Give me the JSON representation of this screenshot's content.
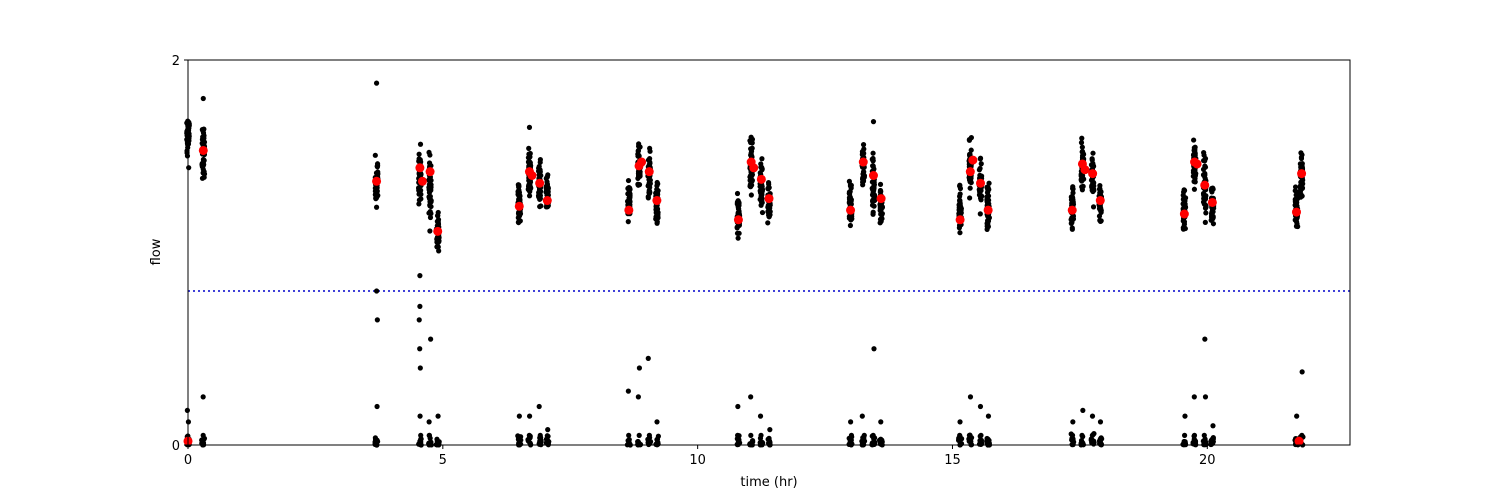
{
  "chart_data": {
    "type": "scatter",
    "title": "",
    "xlabel": "time (hr)",
    "ylabel": "flow",
    "xlim": [
      0,
      22.8
    ],
    "ylim": [
      0,
      2
    ],
    "x_ticks": [
      0,
      5,
      10,
      15,
      20
    ],
    "x_tick_labels": [
      "0",
      "5",
      "10",
      "15",
      "20"
    ],
    "y_ticks": [
      0,
      2
    ],
    "y_tick_labels": [
      "0",
      "2"
    ],
    "grid": false,
    "legend": "none",
    "colors": {
      "raw": "#000000",
      "mean": "#ff0000",
      "threshold": "#0000cc"
    },
    "threshold_line": {
      "y": 0.8,
      "style": "dotted"
    },
    "clusters": [
      {
        "x": 0.0,
        "center": 1.6,
        "spread": 0.11,
        "low": [
          0.02,
          0.12,
          0.18
        ]
      },
      {
        "x": 0.3,
        "center": 1.52,
        "spread": 0.11,
        "low": [
          0.03,
          0.05,
          0.25
        ]
      },
      {
        "x": 3.7,
        "center": 1.35,
        "spread": 0.12,
        "low": [
          0.0,
          0.2,
          0.65,
          0.8
        ]
      },
      {
        "x": 4.55,
        "center": 1.4,
        "spread": 0.12,
        "low": [
          0.05,
          0.15,
          0.4,
          0.5,
          0.65
        ]
      },
      {
        "x": 4.75,
        "center": 1.35,
        "spread": 0.15,
        "low": [
          0.05,
          0.12,
          0.55
        ]
      },
      {
        "x": 4.9,
        "center": 1.1,
        "spread": 0.08,
        "low": [
          0.03,
          0.15
        ]
      },
      {
        "x": 6.5,
        "center": 1.25,
        "spread": 0.11,
        "low": [
          0.03,
          0.15
        ]
      },
      {
        "x": 6.7,
        "center": 1.4,
        "spread": 0.12,
        "low": [
          0.05,
          0.15
        ]
      },
      {
        "x": 6.9,
        "center": 1.35,
        "spread": 0.1,
        "low": [
          0.05,
          0.2
        ]
      },
      {
        "x": 7.05,
        "center": 1.3,
        "spread": 0.08,
        "low": [
          0.03,
          0.08
        ]
      },
      {
        "x": 8.65,
        "center": 1.25,
        "spread": 0.1,
        "low": [
          0.05,
          0.28
        ]
      },
      {
        "x": 8.85,
        "center": 1.45,
        "spread": 0.11,
        "low": [
          0.05,
          0.25,
          0.4
        ]
      },
      {
        "x": 9.05,
        "center": 1.4,
        "spread": 0.12,
        "low": [
          0.05,
          0.45
        ]
      },
      {
        "x": 9.2,
        "center": 1.25,
        "spread": 0.09,
        "low": [
          0.03,
          0.12
        ]
      },
      {
        "x": 10.8,
        "center": 1.2,
        "spread": 0.1,
        "low": [
          0.05,
          0.2
        ]
      },
      {
        "x": 11.05,
        "center": 1.45,
        "spread": 0.11,
        "low": [
          0.05,
          0.25
        ]
      },
      {
        "x": 11.25,
        "center": 1.35,
        "spread": 0.11,
        "low": [
          0.05,
          0.15
        ]
      },
      {
        "x": 11.4,
        "center": 1.25,
        "spread": 0.09,
        "low": [
          0.03,
          0.08
        ]
      },
      {
        "x": 13.0,
        "center": 1.25,
        "spread": 0.1,
        "low": [
          0.05,
          0.12
        ]
      },
      {
        "x": 13.25,
        "center": 1.45,
        "spread": 0.11,
        "low": [
          0.05,
          0.15
        ]
      },
      {
        "x": 13.45,
        "center": 1.35,
        "spread": 0.13,
        "low": [
          0.05,
          0.5
        ]
      },
      {
        "x": 13.6,
        "center": 1.25,
        "spread": 0.09,
        "low": [
          0.03,
          0.12
        ]
      },
      {
        "x": 15.15,
        "center": 1.2,
        "spread": 0.1,
        "low": [
          0.05,
          0.12
        ]
      },
      {
        "x": 15.35,
        "center": 1.45,
        "spread": 0.11,
        "low": [
          0.05,
          0.25
        ]
      },
      {
        "x": 15.55,
        "center": 1.35,
        "spread": 0.12,
        "low": [
          0.05,
          0.2
        ]
      },
      {
        "x": 15.7,
        "center": 1.25,
        "spread": 0.1,
        "low": [
          0.03,
          0.15
        ]
      },
      {
        "x": 17.35,
        "center": 1.25,
        "spread": 0.1,
        "low": [
          0.05,
          0.12
        ]
      },
      {
        "x": 17.55,
        "center": 1.45,
        "spread": 0.11,
        "low": [
          0.05,
          0.18
        ]
      },
      {
        "x": 17.75,
        "center": 1.38,
        "spread": 0.12,
        "low": [
          0.05,
          0.15
        ]
      },
      {
        "x": 17.9,
        "center": 1.25,
        "spread": 0.09,
        "low": [
          0.03,
          0.12
        ]
      },
      {
        "x": 19.55,
        "center": 1.22,
        "spread": 0.1,
        "low": [
          0.05,
          0.15
        ]
      },
      {
        "x": 19.75,
        "center": 1.45,
        "spread": 0.11,
        "low": [
          0.05,
          0.25
        ]
      },
      {
        "x": 19.95,
        "center": 1.35,
        "spread": 0.13,
        "low": [
          0.05,
          0.25,
          0.55
        ]
      },
      {
        "x": 20.1,
        "center": 1.25,
        "spread": 0.09,
        "low": [
          0.03,
          0.1
        ]
      },
      {
        "x": 21.75,
        "center": 1.22,
        "spread": 0.1,
        "low": [
          0.03,
          0.15
        ]
      },
      {
        "x": 21.85,
        "center": 1.4,
        "spread": 0.1,
        "low": [
          0.05,
          0.38
        ]
      }
    ],
    "outliers": [
      {
        "x": 0.3,
        "y": 1.8
      },
      {
        "x": 3.7,
        "y": 1.88
      },
      {
        "x": 3.7,
        "y": 0.0
      },
      {
        "x": 4.55,
        "y": 0.88
      },
      {
        "x": 4.55,
        "y": 0.72
      },
      {
        "x": 6.7,
        "y": 1.65
      },
      {
        "x": 13.45,
        "y": 1.68
      }
    ],
    "mean_points": [
      {
        "x": 0.3,
        "y": 1.53
      },
      {
        "x": 3.7,
        "y": 1.37
      },
      {
        "x": 4.55,
        "y": 1.44
      },
      {
        "x": 4.6,
        "y": 1.37
      },
      {
        "x": 4.75,
        "y": 1.42
      },
      {
        "x": 4.9,
        "y": 1.11
      },
      {
        "x": 6.5,
        "y": 1.24
      },
      {
        "x": 6.7,
        "y": 1.42
      },
      {
        "x": 6.75,
        "y": 1.4
      },
      {
        "x": 6.9,
        "y": 1.36
      },
      {
        "x": 7.05,
        "y": 1.27
      },
      {
        "x": 8.65,
        "y": 1.22
      },
      {
        "x": 8.85,
        "y": 1.45
      },
      {
        "x": 8.9,
        "y": 1.47
      },
      {
        "x": 9.05,
        "y": 1.42
      },
      {
        "x": 9.2,
        "y": 1.27
      },
      {
        "x": 10.8,
        "y": 1.17
      },
      {
        "x": 11.05,
        "y": 1.47
      },
      {
        "x": 11.1,
        "y": 1.44
      },
      {
        "x": 11.25,
        "y": 1.38
      },
      {
        "x": 11.4,
        "y": 1.28
      },
      {
        "x": 13.0,
        "y": 1.22
      },
      {
        "x": 13.25,
        "y": 1.47
      },
      {
        "x": 13.45,
        "y": 1.4
      },
      {
        "x": 13.6,
        "y": 1.28
      },
      {
        "x": 15.15,
        "y": 1.17
      },
      {
        "x": 15.35,
        "y": 1.42
      },
      {
        "x": 15.4,
        "y": 1.48
      },
      {
        "x": 15.55,
        "y": 1.36
      },
      {
        "x": 15.7,
        "y": 1.22
      },
      {
        "x": 17.35,
        "y": 1.22
      },
      {
        "x": 17.55,
        "y": 1.46
      },
      {
        "x": 17.6,
        "y": 1.43
      },
      {
        "x": 17.75,
        "y": 1.41
      },
      {
        "x": 17.9,
        "y": 1.27
      },
      {
        "x": 19.55,
        "y": 1.2
      },
      {
        "x": 19.75,
        "y": 1.47
      },
      {
        "x": 19.8,
        "y": 1.46
      },
      {
        "x": 19.95,
        "y": 1.35
      },
      {
        "x": 20.1,
        "y": 1.26
      },
      {
        "x": 21.75,
        "y": 1.21
      },
      {
        "x": 21.85,
        "y": 1.41
      },
      {
        "x": 21.8,
        "y": 0.02
      },
      {
        "x": 0.0,
        "y": 0.02
      }
    ]
  }
}
